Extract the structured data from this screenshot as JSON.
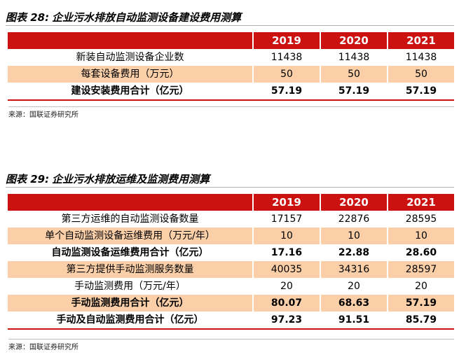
{
  "table28": {
    "caption_label": "图表 28:",
    "caption_title": "企业污水排放自动监测设备建设费用测算",
    "years": [
      "2019",
      "2020",
      "2021"
    ],
    "rows": [
      {
        "label": "新装自动监测设备企业数",
        "values": [
          "11438",
          "11438",
          "11438"
        ]
      },
      {
        "label": "每套设备费用（万元）",
        "values": [
          "50",
          "50",
          "50"
        ]
      },
      {
        "label": "建设安装费用合计（亿元）",
        "values": [
          "57.19",
          "57.19",
          "57.19"
        ]
      }
    ],
    "source": "来源：国联证券研究所"
  },
  "table29": {
    "caption_label": "图表 29:",
    "caption_title": "企业污水排放运维及监测费用测算",
    "years": [
      "2019",
      "2020",
      "2021"
    ],
    "rows": [
      {
        "label": "第三方运维的自动监测设备数量",
        "values": [
          "17157",
          "22876",
          "28595"
        ]
      },
      {
        "label": "单个自动监测设备运维费用（万元/年）",
        "values": [
          "10",
          "10",
          "10"
        ]
      },
      {
        "label": "自动监测设备运维费用合计（亿元）",
        "values": [
          "17.16",
          "22.88",
          "28.60"
        ]
      },
      {
        "label": "第三方提供手动监测服务数量",
        "values": [
          "40035",
          "34316",
          "28597"
        ]
      },
      {
        "label": "手动监测费用（万元/年）",
        "values": [
          "20",
          "20",
          "20"
        ]
      },
      {
        "label": "手动监测费用合计（亿元）",
        "values": [
          "80.07",
          "68.63",
          "57.19"
        ]
      },
      {
        "label": "手动及自动监测费用合计（亿元）",
        "values": [
          "97.23",
          "91.51",
          "85.79"
        ]
      }
    ],
    "source": "来源：国联证券研究所"
  }
}
